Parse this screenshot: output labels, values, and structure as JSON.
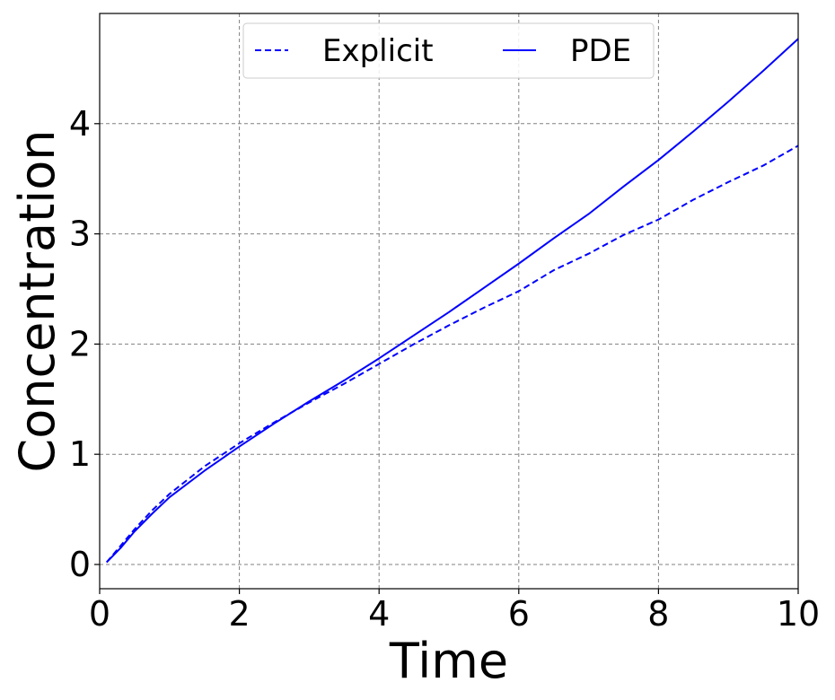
{
  "chart_data": {
    "type": "line",
    "title": "",
    "xlabel": "Time",
    "ylabel": "Concentration",
    "xlim": [
      0,
      10
    ],
    "ylim": [
      -0.22,
      5.0
    ],
    "xticks": [
      0,
      2,
      4,
      6,
      8,
      10
    ],
    "yticks": [
      0,
      1,
      2,
      3,
      4
    ],
    "xtick_labels": [
      "0",
      "2",
      "4",
      "6",
      "8",
      "10"
    ],
    "ytick_labels": [
      "0",
      "1",
      "2",
      "3",
      "4"
    ],
    "grid": true,
    "legend": {
      "placement": "top-center",
      "columns": 2
    },
    "series": [
      {
        "name": "Explicit",
        "color": "#0000ff",
        "line_style": "dashed",
        "x": [
          0.1,
          0.3,
          0.5,
          0.75,
          1.0,
          1.5,
          2.0,
          2.5,
          3.0,
          3.5,
          4.0,
          4.5,
          5.0,
          5.5,
          6.0,
          6.5,
          7.0,
          7.5,
          8.0,
          8.5,
          9.0,
          9.5,
          10.0
        ],
        "y": [
          0.02,
          0.17,
          0.32,
          0.49,
          0.64,
          0.89,
          1.1,
          1.29,
          1.47,
          1.64,
          1.82,
          2.0,
          2.17,
          2.33,
          2.48,
          2.67,
          2.82,
          2.99,
          3.13,
          3.31,
          3.47,
          3.62,
          3.8
        ]
      },
      {
        "name": "PDE",
        "color": "#0000ff",
        "line_style": "solid",
        "x": [
          0.1,
          0.3,
          0.5,
          0.75,
          1.0,
          1.5,
          2.0,
          2.5,
          3.0,
          3.5,
          4.0,
          4.5,
          5.0,
          5.5,
          6.0,
          6.5,
          7.0,
          7.5,
          8.0,
          8.5,
          9.0,
          9.5,
          10.0
        ],
        "y": [
          0.02,
          0.15,
          0.3,
          0.46,
          0.61,
          0.85,
          1.07,
          1.28,
          1.48,
          1.67,
          1.87,
          2.08,
          2.29,
          2.51,
          2.73,
          2.96,
          3.18,
          3.43,
          3.67,
          3.93,
          4.2,
          4.48,
          4.77
        ]
      }
    ]
  }
}
